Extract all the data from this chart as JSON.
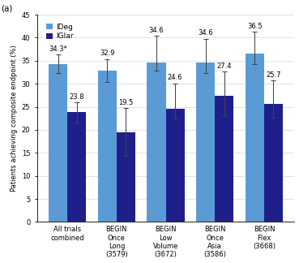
{
  "categories": [
    "All trials\ncombined",
    "BEGIN\nOnce\nLong\n(3579)",
    "BEGIN\nLow\nVolume\n(3672)",
    "BEGIN\nOnce\nAsia\n(3586)",
    "BEGIN\nFlex\n(3668)"
  ],
  "ideg_values": [
    34.3,
    32.9,
    34.6,
    34.6,
    36.5
  ],
  "iglar_values": [
    23.8,
    19.5,
    24.6,
    27.4,
    25.7
  ],
  "ideg_errors_up": [
    2.0,
    2.5,
    5.8,
    5.2,
    4.8
  ],
  "ideg_errors_down": [
    2.0,
    2.5,
    1.8,
    2.2,
    2.2
  ],
  "iglar_errors_up": [
    2.2,
    5.2,
    5.5,
    5.2,
    5.0
  ],
  "iglar_errors_down": [
    2.2,
    5.2,
    2.2,
    4.2,
    3.0
  ],
  "ideg_labels": [
    "34.3*",
    "32.9",
    "34.6",
    "34.6",
    "36.5"
  ],
  "iglar_labels": [
    "23.8",
    "19.5",
    "24.6",
    "27.4",
    "25.7"
  ],
  "ideg_color": "#5b9bd5",
  "iglar_color": "#1f1f8c",
  "ylabel": "Patients achieving composite endpoint (%)",
  "ylim": [
    0,
    45
  ],
  "yticks": [
    0,
    5,
    10,
    15,
    20,
    25,
    30,
    35,
    40,
    45
  ],
  "panel_label": "(a)",
  "legend_labels": [
    "IDeg",
    "IGlar"
  ],
  "bar_width": 0.38,
  "errorbar_color": "#444444",
  "background_color": "#ffffff",
  "label_fontsize": 6.0,
  "tick_fontsize": 6.0,
  "legend_fontsize": 6.5,
  "ylabel_fontsize": 6.0
}
